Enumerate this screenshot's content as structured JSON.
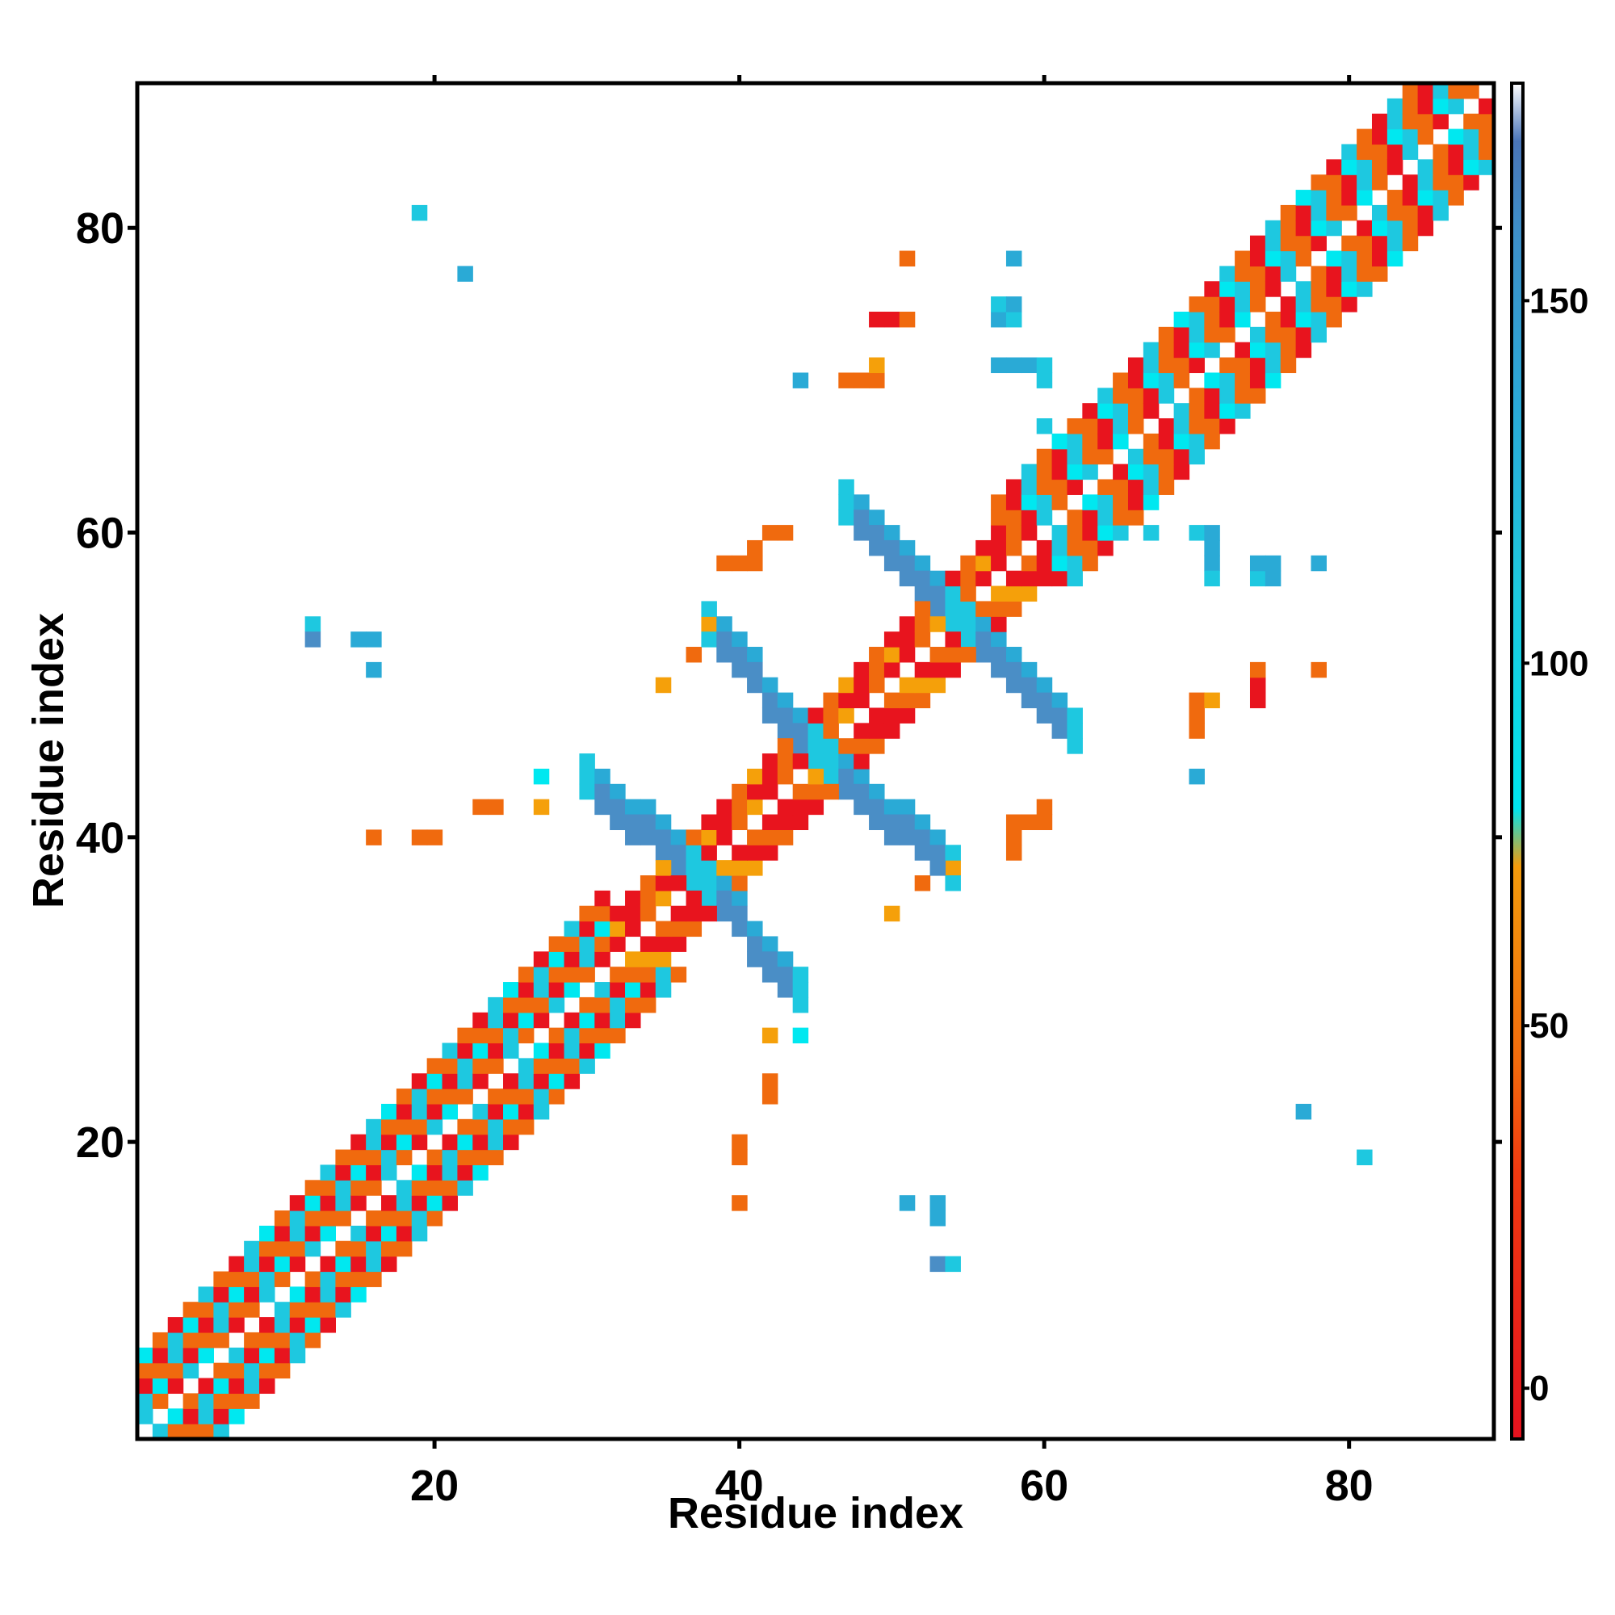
{
  "chart_data": {
    "type": "heatmap",
    "title": "",
    "xlabel": "Residue index",
    "ylabel": "Residue index",
    "xlim": [
      0.5,
      89.5
    ],
    "ylim": [
      0.5,
      89.5
    ],
    "x_ticks": [
      20,
      40,
      60,
      80
    ],
    "y_ticks": [
      20,
      40,
      60,
      80
    ],
    "grid": false,
    "colorbar": {
      "ticks": [
        0,
        50,
        100,
        150
      ],
      "range": [
        -7,
        180
      ],
      "stops": [
        {
          "value": -7,
          "color": "#e5121e"
        },
        {
          "value": 30,
          "color": "#f03a10"
        },
        {
          "value": 45,
          "color": "#f36b0c"
        },
        {
          "value": 72,
          "color": "#f39b0c"
        },
        {
          "value": 80,
          "color": "#00e5ee"
        },
        {
          "value": 110,
          "color": "#1ec8de"
        },
        {
          "value": 135,
          "color": "#2aaad8"
        },
        {
          "value": 160,
          "color": "#3e8ec8"
        },
        {
          "value": 172,
          "color": "#4a75b8"
        },
        {
          "value": 180,
          "color": "#ffffff"
        }
      ]
    },
    "colors": {
      "red": "#e8141e",
      "orange": "#f06a0e",
      "amber": "#f5a00a",
      "cyan": "#00e8f0",
      "lightblue": "#1ec8e0",
      "skyblue": "#2aaad6",
      "steelblue": "#4a8ec6"
    },
    "diagonal_band": [
      {
        "from": 1,
        "to": 31,
        "pattern": [
          "cyan",
          "orange",
          "red",
          "orange",
          "lightblue",
          "orange",
          "red",
          "lightblue"
        ]
      },
      {
        "from": 31,
        "to": 57,
        "pattern": [
          "red",
          "orange",
          "amber",
          "red",
          "orange",
          "red"
        ]
      },
      {
        "from": 57,
        "to": 89,
        "pattern": [
          "orange",
          "red",
          "lightblue",
          "orange",
          "cyan",
          "orange",
          "red",
          "lightblue"
        ]
      }
    ],
    "cells": [
      {
        "x": 19,
        "y": 81,
        "c": "lightblue"
      },
      {
        "x": 22,
        "y": 77,
        "c": "skyblue"
      },
      {
        "x": 51,
        "y": 78,
        "c": "orange"
      },
      {
        "x": 58,
        "y": 78,
        "c": "skyblue"
      },
      {
        "x": 49,
        "y": 74,
        "c": "red"
      },
      {
        "x": 50,
        "y": 74,
        "c": "red"
      },
      {
        "x": 51,
        "y": 74,
        "c": "orange"
      },
      {
        "x": 57,
        "y": 74,
        "c": "skyblue"
      },
      {
        "x": 58,
        "y": 74,
        "c": "lightblue"
      },
      {
        "x": 57,
        "y": 75,
        "c": "lightblue"
      },
      {
        "x": 58,
        "y": 75,
        "c": "skyblue"
      },
      {
        "x": 44,
        "y": 70,
        "c": "skyblue"
      },
      {
        "x": 47,
        "y": 70,
        "c": "orange"
      },
      {
        "x": 48,
        "y": 70,
        "c": "orange"
      },
      {
        "x": 49,
        "y": 70,
        "c": "orange"
      },
      {
        "x": 49,
        "y": 71,
        "c": "amber"
      },
      {
        "x": 57,
        "y": 71,
        "c": "skyblue"
      },
      {
        "x": 58,
        "y": 71,
        "c": "skyblue"
      },
      {
        "x": 59,
        "y": 71,
        "c": "skyblue"
      },
      {
        "x": 60,
        "y": 71,
        "c": "lightblue"
      },
      {
        "x": 60,
        "y": 70,
        "c": "lightblue"
      },
      {
        "x": 60,
        "y": 67,
        "c": "lightblue"
      },
      {
        "x": 12,
        "y": 54,
        "c": "lightblue"
      },
      {
        "x": 12,
        "y": 53,
        "c": "steelblue"
      },
      {
        "x": 15,
        "y": 53,
        "c": "skyblue"
      },
      {
        "x": 16,
        "y": 53,
        "c": "skyblue"
      },
      {
        "x": 16,
        "y": 51,
        "c": "skyblue"
      },
      {
        "x": 35,
        "y": 50,
        "c": "amber"
      },
      {
        "x": 37,
        "y": 52,
        "c": "orange"
      },
      {
        "x": 38,
        "y": 54,
        "c": "amber"
      },
      {
        "x": 39,
        "y": 58,
        "c": "orange"
      },
      {
        "x": 40,
        "y": 58,
        "c": "orange"
      },
      {
        "x": 41,
        "y": 58,
        "c": "orange"
      },
      {
        "x": 41,
        "y": 59,
        "c": "orange"
      },
      {
        "x": 42,
        "y": 60,
        "c": "orange"
      },
      {
        "x": 43,
        "y": 60,
        "c": "orange"
      },
      {
        "x": 16,
        "y": 40,
        "c": "orange"
      },
      {
        "x": 19,
        "y": 40,
        "c": "orange"
      },
      {
        "x": 20,
        "y": 40,
        "c": "orange"
      },
      {
        "x": 23,
        "y": 42,
        "c": "orange"
      },
      {
        "x": 24,
        "y": 42,
        "c": "orange"
      },
      {
        "x": 27,
        "y": 42,
        "c": "amber"
      },
      {
        "x": 27,
        "y": 44,
        "c": "cyan"
      },
      {
        "x": 40,
        "y": 16,
        "c": "orange"
      },
      {
        "x": 40,
        "y": 19,
        "c": "orange"
      },
      {
        "x": 40,
        "y": 20,
        "c": "orange"
      },
      {
        "x": 42,
        "y": 23,
        "c": "orange"
      },
      {
        "x": 42,
        "y": 24,
        "c": "orange"
      },
      {
        "x": 42,
        "y": 27,
        "c": "amber"
      },
      {
        "x": 44,
        "y": 27,
        "c": "cyan"
      },
      {
        "x": 50,
        "y": 35,
        "c": "amber"
      },
      {
        "x": 52,
        "y": 37,
        "c": "orange"
      },
      {
        "x": 54,
        "y": 38,
        "c": "amber"
      },
      {
        "x": 58,
        "y": 39,
        "c": "orange"
      },
      {
        "x": 58,
        "y": 40,
        "c": "orange"
      },
      {
        "x": 58,
        "y": 41,
        "c": "orange"
      },
      {
        "x": 59,
        "y": 41,
        "c": "orange"
      },
      {
        "x": 60,
        "y": 42,
        "c": "orange"
      },
      {
        "x": 60,
        "y": 41,
        "c": "orange"
      },
      {
        "x": 51,
        "y": 16,
        "c": "skyblue"
      },
      {
        "x": 53,
        "y": 16,
        "c": "skyblue"
      },
      {
        "x": 53,
        "y": 15,
        "c": "skyblue"
      },
      {
        "x": 53,
        "y": 12,
        "c": "steelblue"
      },
      {
        "x": 54,
        "y": 12,
        "c": "lightblue"
      },
      {
        "x": 70,
        "y": 44,
        "c": "skyblue"
      },
      {
        "x": 70,
        "y": 47,
        "c": "orange"
      },
      {
        "x": 70,
        "y": 48,
        "c": "orange"
      },
      {
        "x": 70,
        "y": 49,
        "c": "orange"
      },
      {
        "x": 71,
        "y": 49,
        "c": "amber"
      },
      {
        "x": 74,
        "y": 49,
        "c": "red"
      },
      {
        "x": 74,
        "y": 50,
        "c": "red"
      },
      {
        "x": 74,
        "y": 51,
        "c": "orange"
      },
      {
        "x": 78,
        "y": 51,
        "c": "orange"
      },
      {
        "x": 70,
        "y": 60,
        "c": "lightblue"
      },
      {
        "x": 71,
        "y": 60,
        "c": "skyblue"
      },
      {
        "x": 71,
        "y": 59,
        "c": "skyblue"
      },
      {
        "x": 71,
        "y": 58,
        "c": "skyblue"
      },
      {
        "x": 71,
        "y": 57,
        "c": "lightblue"
      },
      {
        "x": 74,
        "y": 57,
        "c": "lightblue"
      },
      {
        "x": 75,
        "y": 57,
        "c": "skyblue"
      },
      {
        "x": 74,
        "y": 58,
        "c": "skyblue"
      },
      {
        "x": 75,
        "y": 58,
        "c": "skyblue"
      },
      {
        "x": 78,
        "y": 58,
        "c": "skyblue"
      },
      {
        "x": 67,
        "y": 60,
        "c": "lightblue"
      },
      {
        "x": 77,
        "y": 22,
        "c": "skyblue"
      },
      {
        "x": 81,
        "y": 19,
        "c": "lightblue"
      }
    ],
    "blocks": [
      {
        "x": [
          47,
          54
        ],
        "y": [
          55,
          62
        ],
        "orient": "anti",
        "width": 3,
        "c": "steelblue"
      },
      {
        "x": [
          55,
          62
        ],
        "y": [
          47,
          54
        ],
        "orient": "anti",
        "width": 3,
        "c": "steelblue"
      },
      {
        "x": [
          38,
          45
        ],
        "y": [
          46,
          54
        ],
        "orient": "anti",
        "width": 3,
        "c": "steelblue"
      },
      {
        "x": [
          46,
          54
        ],
        "y": [
          38,
          45
        ],
        "orient": "anti",
        "width": 3,
        "c": "steelblue"
      },
      {
        "x": [
          30,
          37
        ],
        "y": [
          38,
          44
        ],
        "orient": "anti",
        "width": 3,
        "c": "steelblue"
      },
      {
        "x": [
          38,
          44
        ],
        "y": [
          30,
          37
        ],
        "orient": "anti",
        "width": 3,
        "c": "steelblue"
      }
    ]
  }
}
